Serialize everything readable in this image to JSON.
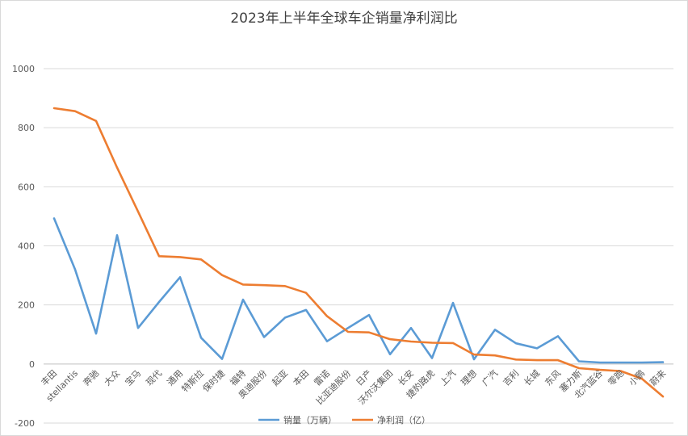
{
  "chart_data": {
    "type": "line",
    "title": "2023年上半年全球车企销量净利润比",
    "xlabel": "",
    "ylabel": "",
    "ylim": [
      -200,
      1000
    ],
    "yticks": [
      -200,
      0,
      200,
      400,
      600,
      800,
      1000
    ],
    "grid": true,
    "legend_position": "bottom",
    "categories": [
      "丰田",
      "stellantis",
      "奔驰",
      "大众",
      "宝马",
      "现代",
      "通用",
      "特斯拉",
      "保时捷",
      "福特",
      "奥迪股份",
      "起亚",
      "本田",
      "雷诺",
      "比亚迪股份",
      "日产",
      "沃尔沃集团",
      "长安",
      "捷豹路虎",
      "上汽",
      "理想",
      "广汽",
      "吉利",
      "长城",
      "东风",
      "塞力斯",
      "北汽蓝谷",
      "零跑",
      "小鹏",
      "蔚来"
    ],
    "series": [
      {
        "name": "销量（万辆）",
        "color": "#5b9bd5",
        "values": [
          493,
          320,
          103,
          436,
          122,
          210,
          294,
          89,
          17,
          218,
          91,
          157,
          183,
          77,
          122,
          166,
          33,
          122,
          20,
          207,
          16,
          116,
          70,
          53,
          94,
          9,
          5,
          5,
          5,
          6
        ]
      },
      {
        "name": "净利润（亿）",
        "color": "#ed7d31",
        "values": [
          866,
          856,
          823,
          665,
          516,
          365,
          362,
          354,
          301,
          269,
          267,
          264,
          241,
          162,
          109,
          107,
          84,
          76,
          72,
          71,
          32,
          29,
          15,
          13,
          13,
          -14,
          -20,
          -24,
          -50,
          -110
        ]
      }
    ]
  }
}
